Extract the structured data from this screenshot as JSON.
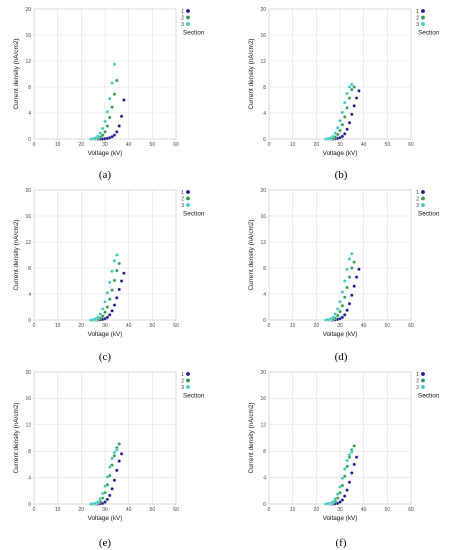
{
  "legend_title": "Section",
  "series_colors": {
    "1": "#1a1a8c",
    "2": "#2e9a4a",
    "3": "#3cc6c6"
  },
  "chart_data": [
    {
      "type": "scatter",
      "panel_label": "(a)",
      "legend_title": "Section",
      "xlabel": "Voltage (kV)",
      "ylabel": "Current density (nA/cm2)",
      "xlim": [
        0,
        60
      ],
      "ylim": [
        0,
        20
      ],
      "x_ticks": [
        "0",
        "10",
        "20",
        "30",
        "40",
        "50",
        "60"
      ],
      "y_ticks": [
        "0",
        "4",
        "8",
        "12",
        "16",
        "20"
      ],
      "grid": true,
      "legend_placement": "top-right",
      "series": [
        {
          "name": "1",
          "x": [
            25,
            26,
            27,
            28,
            29,
            30,
            31,
            32,
            33,
            34,
            35,
            36,
            37,
            38
          ],
          "y": [
            0,
            0,
            0,
            0,
            0,
            0.05,
            0.1,
            0.2,
            0.35,
            0.6,
            1.1,
            2.0,
            3.5,
            6.0
          ]
        },
        {
          "name": "2",
          "x": [
            25,
            26,
            27,
            28,
            29,
            30,
            31,
            32,
            33,
            34,
            35
          ],
          "y": [
            0,
            0.05,
            0.1,
            0.3,
            0.6,
            1.1,
            2.0,
            3.3,
            4.9,
            6.9,
            9.0
          ]
        },
        {
          "name": "3",
          "x": [
            24,
            25,
            26,
            27,
            28,
            29,
            30,
            31,
            32,
            33,
            34
          ],
          "y": [
            0,
            0.05,
            0.15,
            0.4,
            0.9,
            1.6,
            2.7,
            4.2,
            6.2,
            8.6,
            11.5
          ]
        }
      ]
    },
    {
      "type": "scatter",
      "panel_label": "(b)",
      "legend_title": "Section",
      "xlabel": "Voltage (kV)",
      "ylabel": "Current density (nA/cm2)",
      "xlim": [
        0,
        60
      ],
      "ylim": [
        0,
        20
      ],
      "x_ticks": [
        "0",
        "10",
        "20",
        "30",
        "40",
        "50",
        "60"
      ],
      "y_ticks": [
        "0",
        "4",
        "8",
        "12",
        "16",
        "20"
      ],
      "grid": true,
      "legend_placement": "top-right",
      "series": [
        {
          "name": "1",
          "x": [
            26,
            27,
            28,
            29,
            30,
            31,
            32,
            33,
            34,
            35,
            36,
            37,
            38
          ],
          "y": [
            0,
            0,
            0.05,
            0.1,
            0.2,
            0.4,
            0.8,
            1.5,
            2.5,
            3.8,
            5.1,
            6.3,
            7.4
          ]
        },
        {
          "name": "2",
          "x": [
            25,
            26,
            27,
            28,
            29,
            30,
            31,
            32,
            33,
            34,
            35,
            36
          ],
          "y": [
            0,
            0.05,
            0.1,
            0.3,
            0.7,
            1.3,
            2.2,
            3.4,
            4.8,
            6.3,
            7.6,
            8.0
          ]
        },
        {
          "name": "3",
          "x": [
            24,
            25,
            26,
            27,
            28,
            29,
            30,
            31,
            32,
            33,
            34,
            35
          ],
          "y": [
            0,
            0.05,
            0.15,
            0.4,
            0.9,
            1.7,
            2.8,
            4.1,
            5.6,
            7.0,
            8.0,
            8.4
          ]
        }
      ]
    },
    {
      "type": "scatter",
      "panel_label": "(c)",
      "legend_title": "Section",
      "xlabel": "Voltage (kV)",
      "ylabel": "Current density (nA/cm2)",
      "xlim": [
        0,
        60
      ],
      "ylim": [
        0,
        20
      ],
      "x_ticks": [
        "0",
        "10",
        "20",
        "30",
        "40",
        "50",
        "60"
      ],
      "y_ticks": [
        "0",
        "4",
        "8",
        "12",
        "16",
        "20"
      ],
      "grid": true,
      "legend_placement": "top-right",
      "series": [
        {
          "name": "1",
          "x": [
            26,
            27,
            28,
            29,
            30,
            31,
            32,
            33,
            34,
            35,
            36,
            37,
            38
          ],
          "y": [
            0,
            0,
            0.05,
            0.1,
            0.2,
            0.4,
            0.8,
            1.4,
            2.3,
            3.4,
            4.7,
            6.0,
            7.2
          ]
        },
        {
          "name": "2",
          "x": [
            25,
            26,
            27,
            28,
            29,
            30,
            31,
            32,
            33,
            34,
            35,
            36
          ],
          "y": [
            0,
            0.05,
            0.1,
            0.3,
            0.6,
            1.2,
            2.0,
            3.2,
            4.6,
            6.1,
            7.6,
            8.7
          ]
        },
        {
          "name": "3",
          "x": [
            24,
            25,
            26,
            27,
            28,
            29,
            30,
            31,
            32,
            33,
            34,
            35
          ],
          "y": [
            0,
            0.05,
            0.15,
            0.4,
            0.9,
            1.7,
            2.8,
            4.2,
            5.8,
            7.5,
            9.1,
            10.0
          ]
        }
      ]
    },
    {
      "type": "scatter",
      "panel_label": "(d)",
      "legend_title": "Section",
      "xlabel": "Voltage (kV)",
      "ylabel": "Current density (nA/cm2)",
      "xlim": [
        0,
        60
      ],
      "ylim": [
        0,
        20
      ],
      "x_ticks": [
        "0",
        "10",
        "20",
        "30",
        "40",
        "50",
        "60"
      ],
      "y_ticks": [
        "0",
        "4",
        "8",
        "12",
        "16",
        "20"
      ],
      "grid": true,
      "legend_placement": "top-right",
      "series": [
        {
          "name": "1",
          "x": [
            26,
            27,
            28,
            29,
            30,
            31,
            32,
            33,
            34,
            35,
            36,
            37,
            38
          ],
          "y": [
            0,
            0,
            0.05,
            0.1,
            0.2,
            0.4,
            0.8,
            1.5,
            2.5,
            3.8,
            5.2,
            6.6,
            7.8
          ]
        },
        {
          "name": "2",
          "x": [
            25,
            26,
            27,
            28,
            29,
            30,
            31,
            32,
            33,
            34,
            35,
            36
          ],
          "y": [
            0,
            0.05,
            0.1,
            0.3,
            0.7,
            1.3,
            2.2,
            3.5,
            5.0,
            6.6,
            8.0,
            8.9
          ]
        },
        {
          "name": "3",
          "x": [
            24,
            25,
            26,
            27,
            28,
            29,
            30,
            31,
            32,
            33,
            34,
            35
          ],
          "y": [
            0,
            0.05,
            0.15,
            0.4,
            0.9,
            1.7,
            2.8,
            4.3,
            6.0,
            7.8,
            9.4,
            10.2
          ]
        }
      ]
    },
    {
      "type": "scatter",
      "panel_label": "(e)",
      "legend_title": "Section",
      "xlabel": "Voltage (kV)",
      "ylabel": "Current density (nA/cm2)",
      "xlim": [
        0,
        60
      ],
      "ylim": [
        0,
        20
      ],
      "x_ticks": [
        "0",
        "10",
        "20",
        "30",
        "40",
        "50",
        "60"
      ],
      "y_ticks": [
        "0",
        "4",
        "8",
        "12",
        "16",
        "20"
      ],
      "grid": true,
      "legend_placement": "top-right",
      "series": [
        {
          "name": "1",
          "x": [
            26,
            27,
            28,
            29,
            30,
            31,
            32,
            33,
            34,
            35,
            36,
            37
          ],
          "y": [
            0,
            0,
            0.05,
            0.1,
            0.3,
            0.7,
            1.3,
            2.3,
            3.6,
            5.1,
            6.5,
            7.6
          ]
        },
        {
          "name": "2",
          "x": [
            25,
            26,
            27,
            28,
            29,
            30,
            31,
            32,
            33,
            34,
            35,
            36
          ],
          "y": [
            0,
            0.05,
            0.15,
            0.4,
            0.9,
            1.7,
            2.9,
            4.3,
            5.9,
            7.3,
            8.5,
            9.1
          ]
        },
        {
          "name": "3",
          "x": [
            24,
            25,
            26,
            27,
            28,
            29,
            30,
            31,
            32,
            33,
            34,
            35
          ],
          "y": [
            0,
            0.05,
            0.1,
            0.3,
            0.8,
            1.6,
            2.7,
            4.1,
            5.6,
            6.9,
            7.8,
            8.2
          ]
        }
      ]
    },
    {
      "type": "scatter",
      "panel_label": "(f)",
      "legend_title": "Section",
      "xlabel": "Voltage (kV)",
      "ylabel": "Current density (nA/cm2)",
      "xlim": [
        0,
        60
      ],
      "ylim": [
        0,
        20
      ],
      "x_ticks": [
        "0",
        "10",
        "20",
        "30",
        "40",
        "50",
        "60"
      ],
      "y_ticks": [
        "0",
        "4",
        "8",
        "12",
        "16",
        "20"
      ],
      "grid": true,
      "legend_placement": "top-right",
      "series": [
        {
          "name": "1",
          "x": [
            26,
            27,
            28,
            29,
            30,
            31,
            32,
            33,
            34,
            35,
            36,
            37
          ],
          "y": [
            0,
            0,
            0.05,
            0.1,
            0.3,
            0.6,
            1.2,
            2.1,
            3.3,
            4.7,
            6.0,
            7.1
          ]
        },
        {
          "name": "2",
          "x": [
            25,
            26,
            27,
            28,
            29,
            30,
            31,
            32,
            33,
            34,
            35,
            36
          ],
          "y": [
            0,
            0.05,
            0.15,
            0.4,
            0.9,
            1.7,
            2.8,
            4.2,
            5.7,
            7.1,
            8.2,
            8.8
          ]
        },
        {
          "name": "3",
          "x": [
            24,
            25,
            26,
            27,
            28,
            29,
            30,
            31,
            32,
            33,
            34,
            35
          ],
          "y": [
            0,
            0.05,
            0.1,
            0.3,
            0.8,
            1.5,
            2.6,
            3.9,
            5.3,
            6.6,
            7.5,
            7.9
          ]
        }
      ]
    }
  ]
}
